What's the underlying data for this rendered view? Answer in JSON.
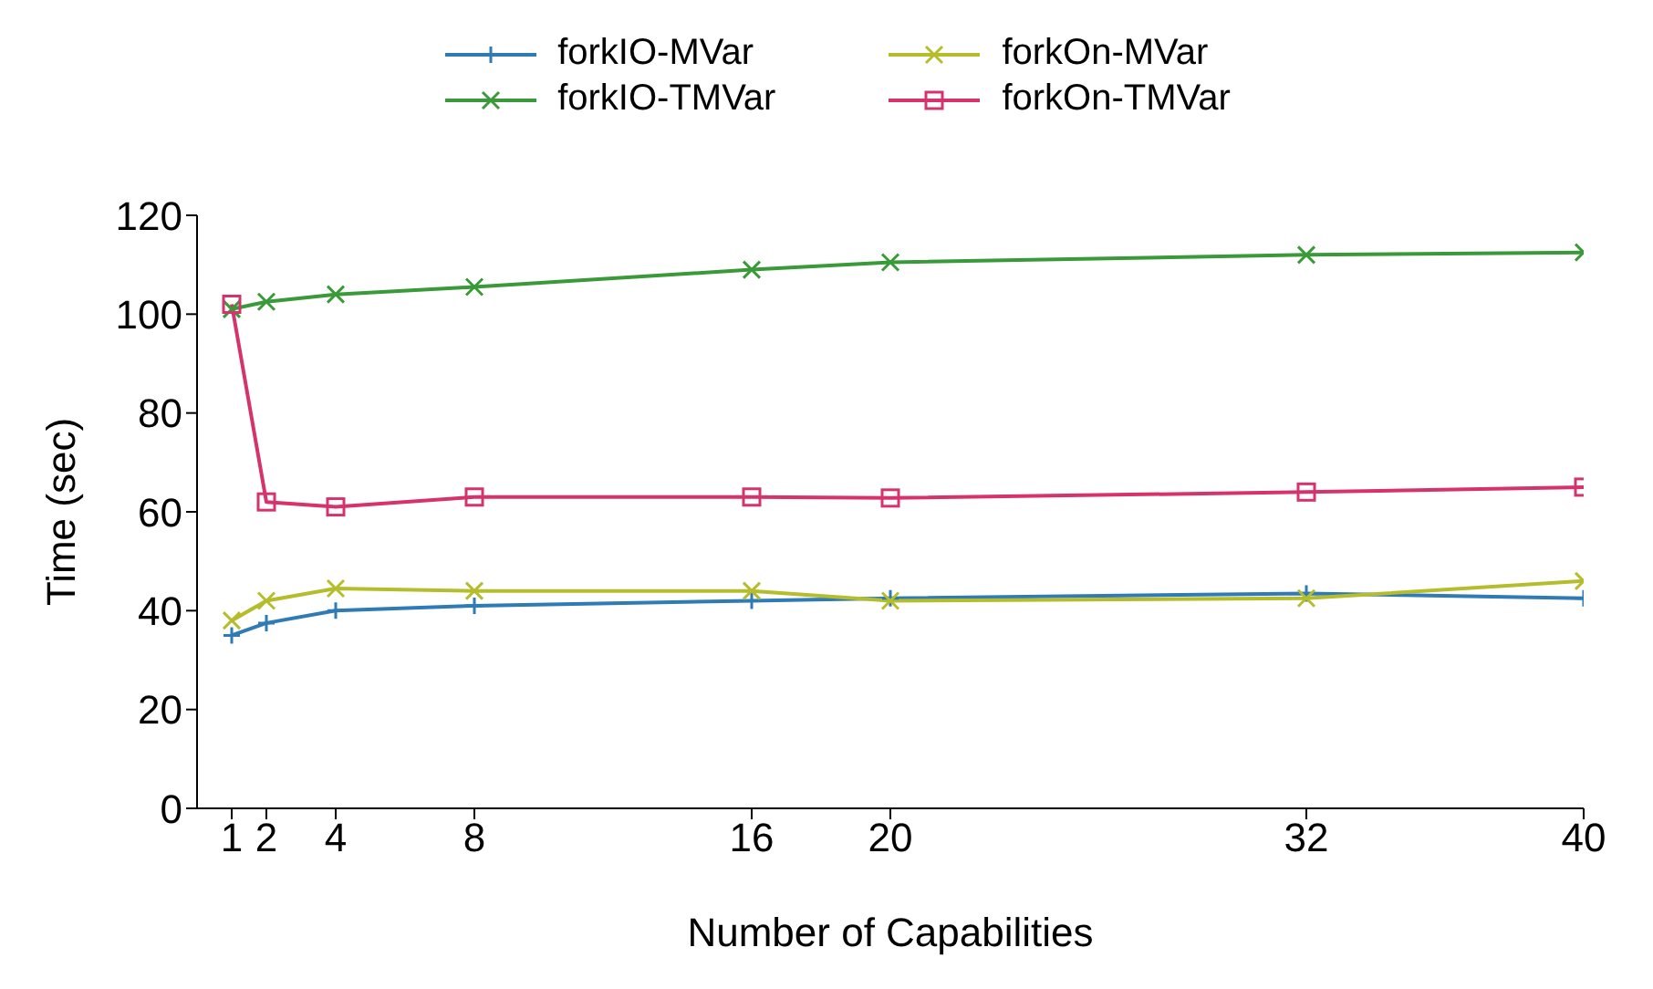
{
  "chart_data": {
    "type": "line",
    "xlabel": "Number of Capabilities",
    "ylabel": "Time (sec)",
    "x": [
      1,
      2,
      4,
      8,
      16,
      20,
      32,
      40
    ],
    "xlim": [
      0,
      40
    ],
    "xticks": [
      {
        "value": 1,
        "label": "1"
      },
      {
        "value": 2,
        "label": "2"
      },
      4,
      8,
      16,
      20,
      32,
      40
    ],
    "ylim": [
      0,
      120
    ],
    "yticks": [
      0,
      20,
      40,
      60,
      80,
      100,
      120
    ],
    "grid": false,
    "legend": "top",
    "line_style": "solid",
    "series": [
      {
        "name": "forkIO-MVar",
        "color": "#2f7bb5",
        "marker": "cross",
        "values": [
          35,
          37.5,
          40,
          41,
          42,
          42.5,
          43.5,
          42.5
        ]
      },
      {
        "name": "forkOn-MVar",
        "color": "#b5bd2c",
        "marker": "cross",
        "values": [
          38,
          42,
          44.5,
          44,
          44,
          42,
          42.5,
          46
        ]
      },
      {
        "name": "forkIO-TMVar",
        "color": "#3a9a3a",
        "marker": "cross",
        "values": [
          101,
          102.5,
          104,
          105.5,
          109,
          110.5,
          112,
          112.5
        ]
      },
      {
        "name": "forkOn-TMVar",
        "color": "#d6336c",
        "marker": "square",
        "values": [
          102,
          62,
          61,
          63,
          63,
          62.8,
          64,
          65
        ]
      }
    ]
  }
}
